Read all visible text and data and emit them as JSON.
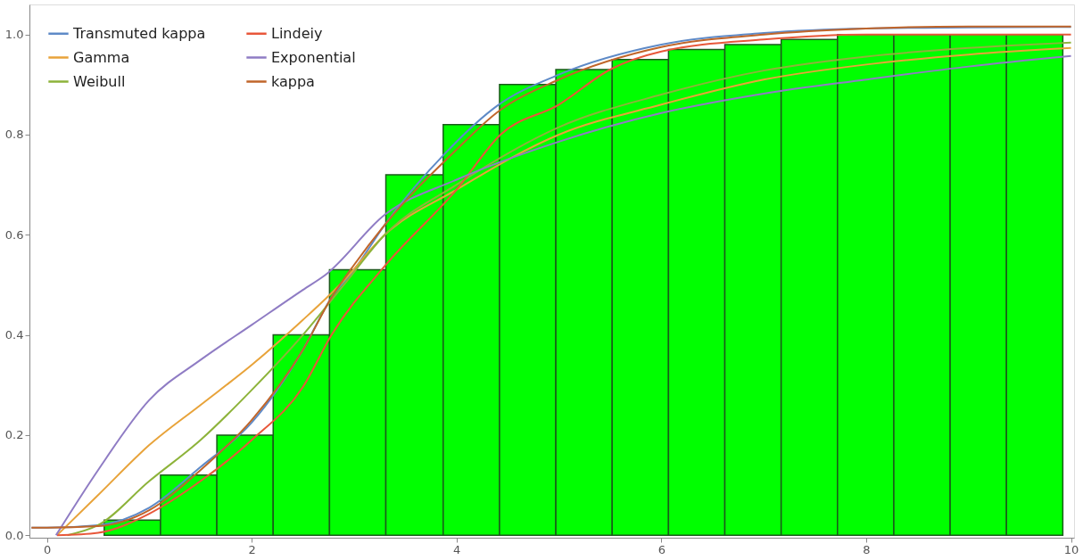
{
  "chart_data": {
    "type": "histogram",
    "bins": [
      0.56,
      1.11,
      1.66,
      2.21,
      2.76,
      3.31,
      3.87,
      4.42,
      4.97,
      5.52,
      6.07,
      6.62,
      7.17,
      7.72,
      8.27,
      8.82,
      9.37,
      9.92
    ],
    "values": [
      0.03,
      0.12,
      0.2,
      0.4,
      0.53,
      0.72,
      0.82,
      0.9,
      0.93,
      0.95,
      0.97,
      0.98,
      0.99,
      1.0,
      1.0,
      1.0,
      1.0
    ],
    "color": "#00ff00",
    "series": [
      {
        "name": "Transmuted kappa",
        "type": "line",
        "color": "#5e8ac7",
        "x": [
          -0.15,
          0,
          0.5,
          1,
          1.5,
          2,
          2.5,
          2.78,
          3,
          3.3,
          3.9,
          4.4,
          5,
          6,
          7,
          8,
          9,
          10
        ],
        "values": [
          0.015,
          0.015,
          0.02,
          0.055,
          0.136,
          0.225,
          0.37,
          0.475,
          0.53,
          0.62,
          0.765,
          0.858,
          0.92,
          0.98,
          1.003,
          1.012,
          1.014,
          1.015
        ]
      },
      {
        "name": "Gamma",
        "type": "line",
        "color": "#e8a33a",
        "x": [
          0.1,
          0.5,
          1,
          1.5,
          2,
          2.5,
          2.86,
          3.3,
          4,
          5,
          6,
          7,
          8,
          9,
          10
        ],
        "values": [
          0,
          0.08,
          0.18,
          0.26,
          0.34,
          0.43,
          0.5,
          0.6,
          0.69,
          0.8,
          0.86,
          0.91,
          0.94,
          0.96,
          0.973
        ]
      },
      {
        "name": "Weibull",
        "type": "line",
        "color": "#8db33a",
        "x": [
          0.2,
          0.5,
          1,
          1.5,
          2,
          2.5,
          2.9,
          3.3,
          4,
          5,
          6,
          7,
          8,
          9,
          10
        ],
        "values": [
          0,
          0.02,
          0.108,
          0.19,
          0.29,
          0.4,
          0.5,
          0.6,
          0.7,
          0.815,
          0.88,
          0.928,
          0.956,
          0.973,
          0.984
        ]
      },
      {
        "name": "Lindeiy",
        "type": "line",
        "color": "#e8573a",
        "x": [
          0.1,
          0.5,
          1,
          1.5,
          2,
          2.5,
          2.78,
          3.31,
          4,
          4.43,
          5,
          5.5,
          6,
          7,
          8,
          10
        ],
        "values": [
          0,
          0.005,
          0.043,
          0.108,
          0.19,
          0.296,
          0.4,
          0.54,
          0.69,
          0.8,
          0.86,
          0.93,
          0.966,
          0.99,
          1.0,
          1.0
        ]
      },
      {
        "name": "Exponential",
        "type": "line",
        "color": "#8f7cc4",
        "x": [
          0.09,
          0.5,
          1,
          1.5,
          2,
          2.5,
          2.72,
          3.3,
          4,
          5,
          6,
          7,
          8,
          9,
          10
        ],
        "values": [
          0,
          0.13,
          0.27,
          0.35,
          0.42,
          0.49,
          0.52,
          0.64,
          0.71,
          0.786,
          0.843,
          0.882,
          0.91,
          0.936,
          0.957
        ]
      },
      {
        "name": "kappa",
        "type": "line",
        "color": "#c0652a",
        "x": [
          -0.15,
          0,
          0.5,
          1,
          1.5,
          2,
          2.5,
          2.78,
          3,
          3.3,
          4,
          4.4,
          5,
          6,
          7,
          8,
          9,
          10
        ],
        "values": [
          0.015,
          0.015,
          0.018,
          0.05,
          0.13,
          0.23,
          0.37,
          0.475,
          0.54,
          0.62,
          0.77,
          0.845,
          0.91,
          0.975,
          1.0,
          1.012,
          1.016,
          1.016
        ]
      }
    ],
    "xlim": [
      -0.17,
      10.03
    ],
    "ylim": [
      -0.005,
      1.06
    ],
    "xticks": [
      0,
      2,
      4,
      6,
      8,
      10
    ],
    "yticks": [
      {
        "value": 0,
        "label": "0.0"
      },
      0.2,
      0.4,
      0.6,
      0.8,
      {
        "value": 1,
        "label": "1.0"
      }
    ],
    "grid": false,
    "legend": "top left"
  }
}
